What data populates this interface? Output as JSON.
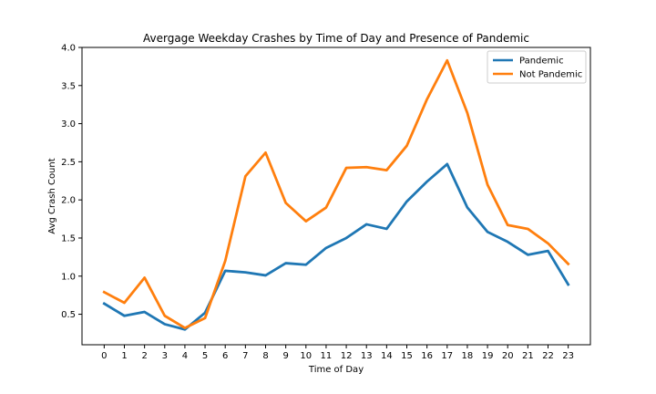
{
  "chart_data": {
    "type": "line",
    "title": "Avergage Weekday Crashes by Time of Day and Presence of Pandemic",
    "xlabel": "Time of Day",
    "ylabel": "Avg Crash Count",
    "x": [
      0,
      1,
      2,
      3,
      4,
      5,
      6,
      7,
      8,
      9,
      10,
      11,
      12,
      13,
      14,
      15,
      16,
      17,
      18,
      19,
      20,
      21,
      22,
      23
    ],
    "x_tick_labels": [
      "0",
      "1",
      "2",
      "3",
      "4",
      "5",
      "6",
      "7",
      "8",
      "9",
      "10",
      "11",
      "12",
      "13",
      "14",
      "15",
      "16",
      "17",
      "18",
      "19",
      "20",
      "21",
      "22",
      "23"
    ],
    "ylim": [
      0.1,
      4.0
    ],
    "y_ticks": [
      0.5,
      1.0,
      1.5,
      2.0,
      2.5,
      3.0,
      3.5,
      4.0
    ],
    "y_tick_labels": [
      "0.5",
      "1.0",
      "1.5",
      "2.0",
      "2.5",
      "3.0",
      "3.5",
      "4.0"
    ],
    "grid": false,
    "legend_position": "top-right",
    "series": [
      {
        "name": "Pandemic",
        "color": "#1f77b4",
        "values": [
          0.64,
          0.48,
          0.53,
          0.37,
          0.3,
          0.52,
          1.07,
          1.05,
          1.01,
          1.17,
          1.15,
          1.37,
          1.5,
          1.68,
          1.62,
          1.98,
          2.24,
          2.47,
          1.9,
          1.58,
          1.45,
          1.28,
          1.33,
          0.89
        ]
      },
      {
        "name": "Not Pandemic",
        "color": "#ff7f0e",
        "values": [
          0.79,
          0.65,
          0.98,
          0.48,
          0.32,
          0.45,
          1.2,
          2.31,
          2.62,
          1.96,
          1.72,
          1.9,
          2.42,
          2.43,
          2.39,
          2.71,
          3.32,
          3.83,
          3.14,
          2.2,
          1.67,
          1.62,
          1.43,
          1.16
        ]
      }
    ]
  }
}
